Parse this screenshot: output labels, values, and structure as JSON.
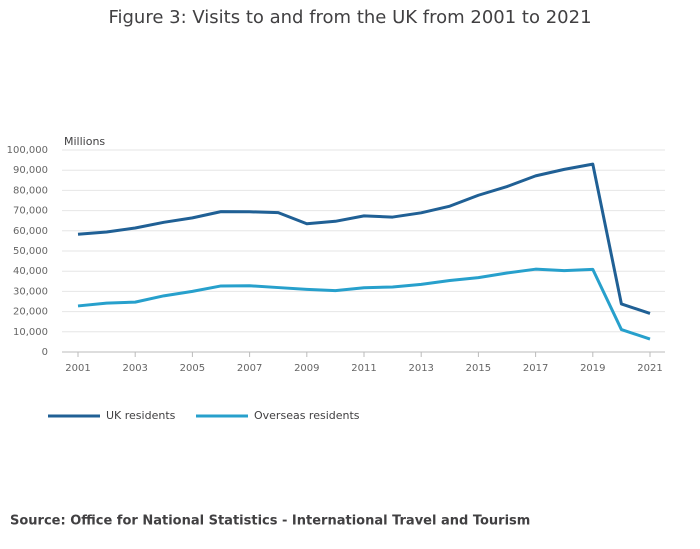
{
  "chart_data": {
    "type": "line",
    "title": "Figure 3: Visits to and from the UK from 2001 to 2021",
    "y_label": "Millions",
    "source": "Source: Office for National Statistics - International Travel and Tourism",
    "x": [
      2001,
      2002,
      2003,
      2004,
      2005,
      2006,
      2007,
      2008,
      2009,
      2010,
      2011,
      2012,
      2013,
      2014,
      2015,
      2016,
      2017,
      2018,
      2019,
      2020,
      2021
    ],
    "series": [
      {
        "name": "UK residents",
        "color": "#206095",
        "values": [
          58300,
          59400,
          61400,
          64200,
          66400,
          69500,
          69400,
          69000,
          63500,
          64700,
          67400,
          66800,
          68900,
          72200,
          77600,
          81900,
          87200,
          90400,
          93000,
          23800,
          19100
        ]
      },
      {
        "name": "Overseas residents",
        "color": "#27a0cc",
        "values": [
          22800,
          24200,
          24700,
          27800,
          30000,
          32700,
          32800,
          31900,
          31000,
          30400,
          31800,
          32200,
          33500,
          35400,
          36800,
          39100,
          41000,
          40300,
          40900,
          11100,
          6400
        ]
      }
    ],
    "xlim": [
      2001,
      2021
    ],
    "xticks": [
      2001,
      2003,
      2005,
      2007,
      2009,
      2011,
      2013,
      2015,
      2017,
      2019,
      2021
    ],
    "ylim": [
      0,
      100000
    ],
    "yticks": [
      0,
      {
        "value": 10000,
        "label": "10,000"
      },
      {
        "value": 20000,
        "label": "20,000"
      },
      {
        "value": 30000,
        "label": "30,000"
      },
      {
        "value": 40000,
        "label": "40,000"
      },
      {
        "value": 50000,
        "label": "50,000"
      },
      {
        "value": 60000,
        "label": "60,000"
      },
      {
        "value": 70000,
        "label": "70,000"
      },
      {
        "value": 80000,
        "label": "80,000"
      },
      {
        "value": 90000,
        "label": "90,000"
      },
      {
        "value": 100000,
        "label": "100,000"
      }
    ],
    "grid": true
  }
}
